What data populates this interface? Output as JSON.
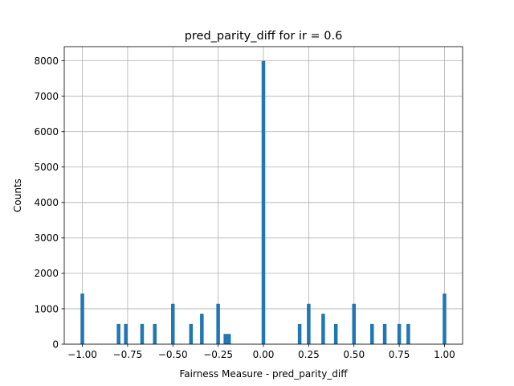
{
  "chart_data": {
    "type": "bar",
    "title": "pred_parity_diff for ir = 0.6",
    "xlabel": "Fairness Measure - pred_parity_diff",
    "ylabel": "Counts",
    "xlim": [
      -1.1,
      1.1
    ],
    "ylim": [
      0,
      8400
    ],
    "grid": true,
    "bar_color": "#1f77b4",
    "bin_width": 0.02,
    "xticks": [
      {
        "value": -1.0,
        "label": "−1.00"
      },
      {
        "value": -0.75,
        "label": "−0.75"
      },
      {
        "value": -0.5,
        "label": "−0.50"
      },
      {
        "value": -0.25,
        "label": "−0.25"
      },
      {
        "value": 0.0,
        "label": "0.00"
      },
      {
        "value": 0.25,
        "label": "0.25"
      },
      {
        "value": 0.5,
        "label": "0.50"
      },
      {
        "value": 0.75,
        "label": "0.75"
      },
      {
        "value": 1.0,
        "label": "1.00"
      }
    ],
    "yticks": [
      {
        "value": 0,
        "label": "0"
      },
      {
        "value": 1000,
        "label": "1000"
      },
      {
        "value": 2000,
        "label": "2000"
      },
      {
        "value": 3000,
        "label": "3000"
      },
      {
        "value": 4000,
        "label": "4000"
      },
      {
        "value": 5000,
        "label": "5000"
      },
      {
        "value": 6000,
        "label": "6000"
      },
      {
        "value": 7000,
        "label": "7000"
      },
      {
        "value": 8000,
        "label": "8000"
      }
    ],
    "bars": [
      {
        "x": -1.0,
        "count": 1430
      },
      {
        "x": -0.8,
        "count": 570
      },
      {
        "x": -0.76,
        "count": 570
      },
      {
        "x": -0.67,
        "count": 570
      },
      {
        "x": -0.6,
        "count": 570
      },
      {
        "x": -0.5,
        "count": 1140
      },
      {
        "x": -0.4,
        "count": 570
      },
      {
        "x": -0.34,
        "count": 860
      },
      {
        "x": -0.25,
        "count": 1140
      },
      {
        "x": -0.21,
        "count": 290
      },
      {
        "x": -0.19,
        "count": 290
      },
      {
        "x": 0.0,
        "count": 8000
      },
      {
        "x": 0.2,
        "count": 570
      },
      {
        "x": 0.25,
        "count": 1140
      },
      {
        "x": 0.33,
        "count": 860
      },
      {
        "x": 0.4,
        "count": 570
      },
      {
        "x": 0.5,
        "count": 1140
      },
      {
        "x": 0.6,
        "count": 570
      },
      {
        "x": 0.67,
        "count": 570
      },
      {
        "x": 0.75,
        "count": 570
      },
      {
        "x": 0.8,
        "count": 570
      },
      {
        "x": 1.0,
        "count": 1430
      }
    ]
  }
}
